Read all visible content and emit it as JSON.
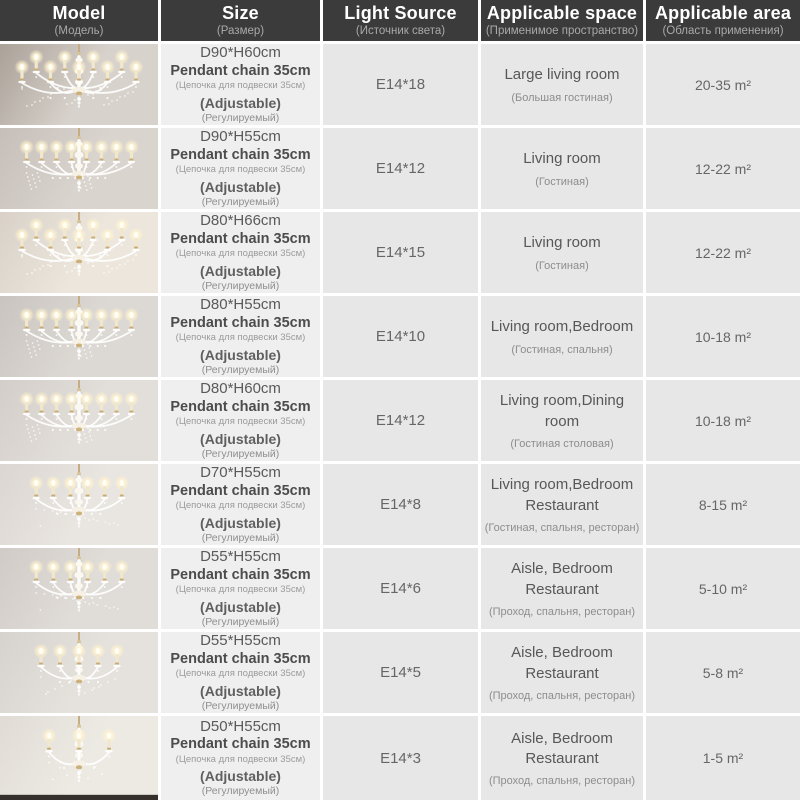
{
  "header": {
    "cols": [
      {
        "label": "Model",
        "sub": "(Модель)"
      },
      {
        "label": "Size",
        "sub": "(Размер)"
      },
      {
        "label": "Light Source",
        "sub": "(Источник света)"
      },
      {
        "label": "Applicable space",
        "sub": "(Применимое пространство)"
      },
      {
        "label": "Applicable area",
        "sub": "(Область применения)"
      }
    ]
  },
  "size_shared": {
    "pendant": "Pendant chain 35cm",
    "pendant_sub": "(Цепочка для подвески 35см)",
    "adjustable": "(Adjustable)",
    "adjustable_sub": "(Регулируемый)"
  },
  "colors": {
    "header_bg": "#3b3b3b",
    "cell_bg": "#e7e7e7",
    "size_cell_bg": "#efefef",
    "gold_accent": "#c9ac72"
  },
  "rows": [
    {
      "icon": "chandelier-icon",
      "size_dims": "D90*H60cm",
      "light_source": "E14*18",
      "bulbs": 18,
      "space_main": "Large living room",
      "space_sub": "(Большая гостиная)",
      "area": "20-35 m²",
      "photo_bg": [
        "#aaa198",
        "#d8d2cc"
      ],
      "floor_strip": false
    },
    {
      "icon": "chandelier-icon",
      "size_dims": "D90*H55cm",
      "light_source": "E14*12",
      "bulbs": 12,
      "space_main": "Living room",
      "space_sub": "(Гостиная)",
      "area": "12-22 m²",
      "photo_bg": [
        "#c6bfb9",
        "#dad4ce"
      ],
      "floor_strip": false
    },
    {
      "icon": "chandelier-icon",
      "size_dims": "D80*H66cm",
      "light_source": "E14*15",
      "bulbs": 15,
      "space_main": "Living room",
      "space_sub": "(Гостиная)",
      "area": "12-22 m²",
      "photo_bg": [
        "#d9d1c7",
        "#ece6dd"
      ],
      "floor_strip": false
    },
    {
      "icon": "chandelier-icon",
      "size_dims": "D80*H55cm",
      "light_source": "E14*10",
      "bulbs": 10,
      "space_main": "Living room,Bedroom",
      "space_sub": "(Гостиная, спальня)",
      "area": "10-18 m²",
      "photo_bg": [
        "#c9c4bf",
        "#dcd8d3"
      ],
      "floor_strip": false
    },
    {
      "icon": "chandelier-icon",
      "size_dims": "D80*H60cm",
      "light_source": "E14*12",
      "bulbs": 12,
      "space_main": "Living room,Dining room",
      "space_sub": "(Гостиная столовая)",
      "area": "10-18 m²",
      "photo_bg": [
        "#d3cec9",
        "#e2ded9"
      ],
      "floor_strip": false
    },
    {
      "icon": "chandelier-icon",
      "size_dims": "D70*H55cm",
      "light_source": "E14*8",
      "bulbs": 8,
      "space_main": "Living room,Bedroom Restaurant",
      "space_sub": "(Гостиная, спальня, ресторан)",
      "area": "8-15 m²",
      "photo_bg": [
        "#dbd6d1",
        "#e9e5e0"
      ],
      "floor_strip": false
    },
    {
      "icon": "chandelier-icon",
      "size_dims": "D55*H55cm",
      "light_source": "E14*6",
      "bulbs": 6,
      "space_main": "Aisle, Bedroom Restaurant",
      "space_sub": "(Проход, спальня, ресторан)",
      "area": "5-10 m²",
      "photo_bg": [
        "#d0cbc6",
        "#e0dcd7"
      ],
      "floor_strip": false
    },
    {
      "icon": "chandelier-icon",
      "size_dims": "D55*H55cm",
      "light_source": "E14*5",
      "bulbs": 5,
      "space_main": "Aisle, Bedroom Restaurant",
      "space_sub": "(Проход, спальня, ресторан)",
      "area": "5-8 m²",
      "photo_bg": [
        "#d6d2cd",
        "#e5e1dc"
      ],
      "floor_strip": false
    },
    {
      "icon": "chandelier-icon",
      "size_dims": "D50*H55cm",
      "light_source": "E14*3",
      "bulbs": 3,
      "space_main": "Aisle, Bedroom Restaurant",
      "space_sub": "(Проход, спальня, ресторан)",
      "area": "1-5 m²",
      "photo_bg": [
        "#e0dbd5",
        "#edeae4"
      ],
      "floor_strip": true
    }
  ]
}
